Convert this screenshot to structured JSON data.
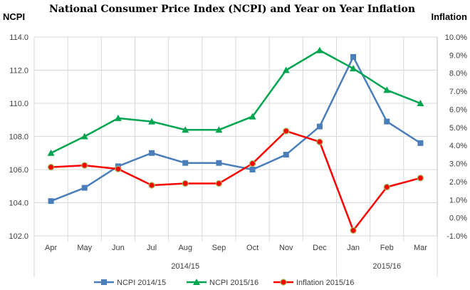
{
  "chart_data": {
    "type": "line",
    "title": "National Consumer Price Index (NCPI) and Year on Year Inflation",
    "ylabel_left": "NCPI",
    "ylabel_right": "Inflation",
    "categories": [
      "Apr",
      "May",
      "Jun",
      "Jul",
      "Aug",
      "Sep",
      "Oct",
      "Nov",
      "Dec",
      "Jan",
      "Feb",
      "Mar"
    ],
    "groups": [
      {
        "label": "2014/15",
        "span": 9
      },
      {
        "label": "2015/16",
        "span": 3
      }
    ],
    "ylim_left": [
      102,
      114
    ],
    "yticks_left": [
      "102.0",
      "104.0",
      "106.0",
      "108.0",
      "110.0",
      "112.0",
      "114.0"
    ],
    "ylim_right": [
      -1,
      10
    ],
    "yticks_right": [
      "-1.0%",
      "0.0%",
      "1.0%",
      "2.0%",
      "3.0%",
      "4.0%",
      "5.0%",
      "6.0%",
      "7.0%",
      "8.0%",
      "9.0%",
      "10.0%"
    ],
    "grid": true,
    "legend_position": "bottom",
    "series": [
      {
        "name": "NCPI 2014/15",
        "axis": "left",
        "marker": "square",
        "color": "#4a7ebb",
        "values": [
          104.1,
          104.9,
          106.2,
          107.0,
          106.4,
          106.4,
          106.0,
          106.9,
          108.6,
          112.8,
          108.9,
          107.6
        ]
      },
      {
        "name": "NCPI 2015/16",
        "axis": "left",
        "marker": "triangle",
        "color": "#00a550",
        "values": [
          107.0,
          108.0,
          109.1,
          108.9,
          108.4,
          108.4,
          109.2,
          112.0,
          113.2,
          112.1,
          110.8,
          110.0
        ]
      },
      {
        "name": "Inflation 2015/16",
        "axis": "right",
        "marker": "circle",
        "color": "#ff0000",
        "values": [
          2.8,
          2.9,
          2.7,
          1.8,
          1.9,
          1.9,
          3.0,
          4.8,
          4.2,
          -0.7,
          1.7,
          2.2
        ]
      }
    ]
  }
}
